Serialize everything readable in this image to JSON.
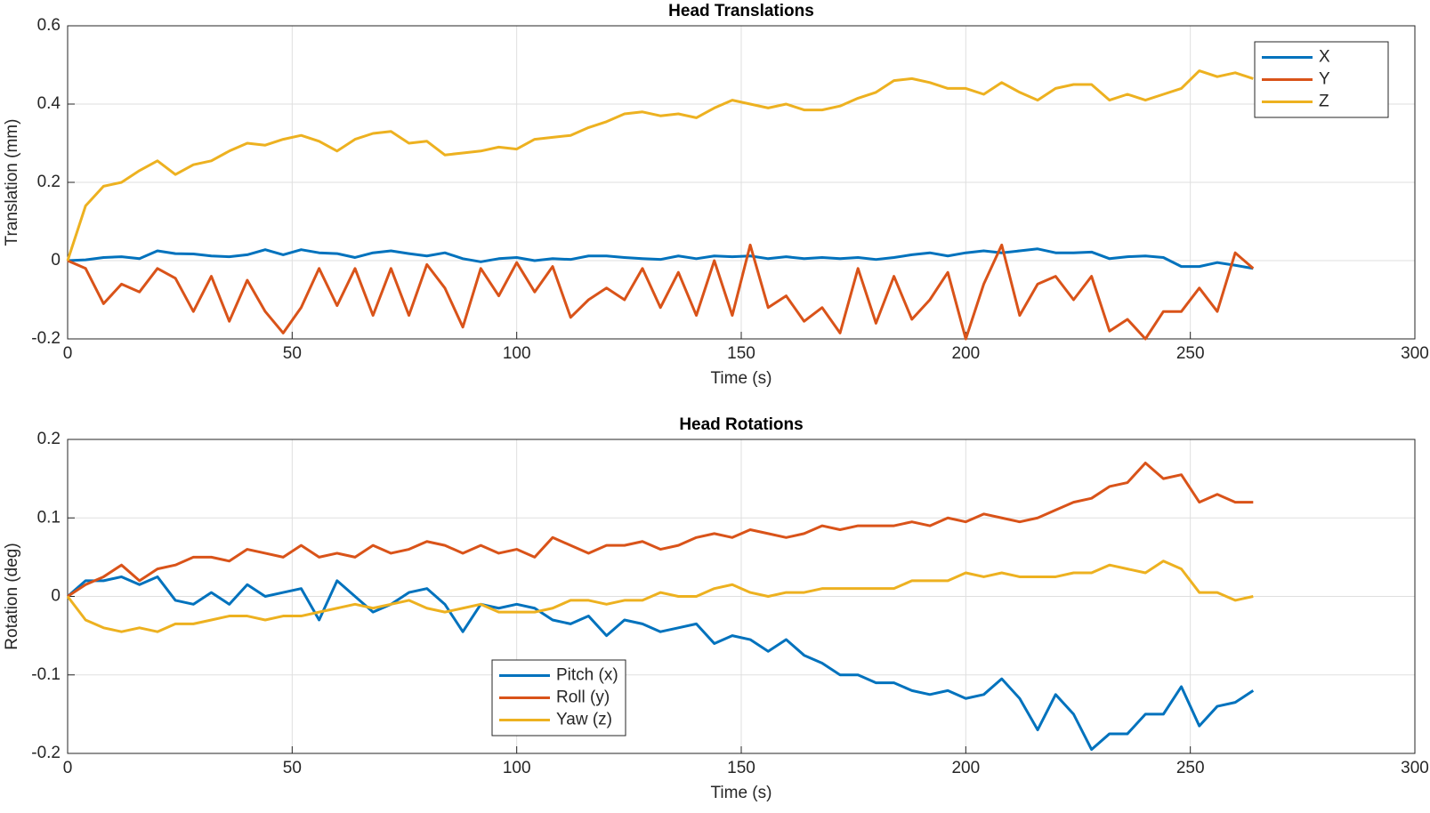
{
  "chart_data": [
    {
      "type": "line",
      "title": "Head Translations",
      "xlabel": "Time (s)",
      "ylabel": "Translation (mm)",
      "x": [
        0,
        4,
        8,
        12,
        16,
        20,
        24,
        28,
        32,
        36,
        40,
        44,
        48,
        52,
        56,
        60,
        64,
        68,
        72,
        76,
        80,
        84,
        88,
        92,
        96,
        100,
        104,
        108,
        112,
        116,
        120,
        124,
        128,
        132,
        136,
        140,
        144,
        148,
        152,
        156,
        160,
        164,
        168,
        172,
        176,
        180,
        184,
        188,
        192,
        196,
        200,
        204,
        208,
        212,
        216,
        220,
        224,
        228,
        232,
        236,
        240,
        244,
        248,
        252,
        256,
        260,
        264
      ],
      "xlim": [
        0,
        300
      ],
      "xticks": [
        0,
        50,
        100,
        150,
        200,
        250,
        300
      ],
      "ylim": [
        -0.2,
        0.6
      ],
      "yticks": [
        -0.2,
        0,
        0.2,
        0.4,
        0.6
      ],
      "grid": true,
      "legend": "upper right",
      "series": [
        {
          "name": "X",
          "color": "#0072bd",
          "values": [
            0,
            0.002,
            0.008,
            0.01,
            0.005,
            0.025,
            0.018,
            0.017,
            0.012,
            0.01,
            0.015,
            0.028,
            0.015,
            0.028,
            0.02,
            0.018,
            0.008,
            0.02,
            0.025,
            0.018,
            0.012,
            0.02,
            0.005,
            -0.003,
            0.005,
            0.008,
            0,
            0.005,
            0.003,
            0.012,
            0.012,
            0.008,
            0.005,
            0.003,
            0.012,
            0.005,
            0.012,
            0.01,
            0.012,
            0.005,
            0.01,
            0.005,
            0.008,
            0.005,
            0.008,
            0.003,
            0.008,
            0.015,
            0.02,
            0.012,
            0.02,
            0.025,
            0.02,
            0.025,
            0.03,
            0.02,
            0.02,
            0.022,
            0.005,
            0.01,
            0.012,
            0.008,
            -0.015,
            -0.015,
            -0.005,
            -0.012,
            -0.02
          ]
        },
        {
          "name": "Y",
          "color": "#d95319",
          "values": [
            0,
            -0.02,
            -0.11,
            -0.06,
            -0.08,
            -0.02,
            -0.045,
            -0.13,
            -0.04,
            -0.155,
            -0.05,
            -0.13,
            -0.185,
            -0.12,
            -0.02,
            -0.115,
            -0.02,
            -0.14,
            -0.02,
            -0.14,
            -0.01,
            -0.07,
            -0.17,
            -0.02,
            -0.09,
            -0.005,
            -0.08,
            -0.015,
            -0.145,
            -0.1,
            -0.07,
            -0.1,
            -0.02,
            -0.12,
            -0.03,
            -0.14,
            0,
            -0.14,
            0.04,
            -0.12,
            -0.09,
            -0.155,
            -0.12,
            -0.185,
            -0.02,
            -0.16,
            -0.04,
            -0.15,
            -0.1,
            -0.03,
            -0.2,
            -0.06,
            0.04,
            -0.14,
            -0.06,
            -0.04,
            -0.1,
            -0.04,
            -0.18,
            -0.15,
            -0.2,
            -0.13,
            -0.13,
            -0.07,
            -0.13,
            0.02,
            -0.02
          ]
        },
        {
          "name": "Z",
          "color": "#edb120",
          "values": [
            0,
            0.14,
            0.19,
            0.2,
            0.23,
            0.255,
            0.22,
            0.245,
            0.255,
            0.28,
            0.3,
            0.295,
            0.31,
            0.32,
            0.305,
            0.28,
            0.31,
            0.325,
            0.33,
            0.3,
            0.305,
            0.27,
            0.275,
            0.28,
            0.29,
            0.285,
            0.31,
            0.315,
            0.32,
            0.34,
            0.355,
            0.375,
            0.38,
            0.37,
            0.375,
            0.365,
            0.39,
            0.41,
            0.4,
            0.39,
            0.4,
            0.385,
            0.385,
            0.395,
            0.415,
            0.43,
            0.46,
            0.465,
            0.455,
            0.44,
            0.44,
            0.425,
            0.455,
            0.43,
            0.41,
            0.44,
            0.45,
            0.45,
            0.41,
            0.425,
            0.41,
            0.425,
            0.44,
            0.485,
            0.47,
            0.48,
            0.465
          ]
        }
      ]
    },
    {
      "type": "line",
      "title": "Head Rotations",
      "xlabel": "Time (s)",
      "ylabel": "Rotation (deg)",
      "x": [
        0,
        4,
        8,
        12,
        16,
        20,
        24,
        28,
        32,
        36,
        40,
        44,
        48,
        52,
        56,
        60,
        64,
        68,
        72,
        76,
        80,
        84,
        88,
        92,
        96,
        100,
        104,
        108,
        112,
        116,
        120,
        124,
        128,
        132,
        136,
        140,
        144,
        148,
        152,
        156,
        160,
        164,
        168,
        172,
        176,
        180,
        184,
        188,
        192,
        196,
        200,
        204,
        208,
        212,
        216,
        220,
        224,
        228,
        232,
        236,
        240,
        244,
        248,
        252,
        256,
        260,
        264
      ],
      "xlim": [
        0,
        300
      ],
      "xticks": [
        0,
        50,
        100,
        150,
        200,
        250,
        300
      ],
      "ylim": [
        -0.2,
        0.2
      ],
      "yticks": [
        -0.2,
        -0.1,
        0,
        0.1,
        0.2
      ],
      "grid": true,
      "legend": "lower center",
      "series": [
        {
          "name": "Pitch (x)",
          "color": "#0072bd",
          "values": [
            0,
            0.02,
            0.02,
            0.025,
            0.015,
            0.025,
            -0.005,
            -0.01,
            0.005,
            -0.01,
            0.015,
            0,
            0.005,
            0.01,
            -0.03,
            0.02,
            0,
            -0.02,
            -0.01,
            0.005,
            0.01,
            -0.01,
            -0.045,
            -0.01,
            -0.015,
            -0.01,
            -0.015,
            -0.03,
            -0.035,
            -0.025,
            -0.05,
            -0.03,
            -0.035,
            -0.045,
            -0.04,
            -0.035,
            -0.06,
            -0.05,
            -0.055,
            -0.07,
            -0.055,
            -0.075,
            -0.085,
            -0.1,
            -0.1,
            -0.11,
            -0.11,
            -0.12,
            -0.125,
            -0.12,
            -0.13,
            -0.125,
            -0.105,
            -0.13,
            -0.17,
            -0.125,
            -0.15,
            -0.195,
            -0.175,
            -0.175,
            -0.15,
            -0.15,
            -0.115,
            -0.165,
            -0.14,
            -0.135,
            -0.12
          ]
        },
        {
          "name": "Roll (y)",
          "color": "#d95319",
          "values": [
            0,
            0.015,
            0.025,
            0.04,
            0.02,
            0.035,
            0.04,
            0.05,
            0.05,
            0.045,
            0.06,
            0.055,
            0.05,
            0.065,
            0.05,
            0.055,
            0.05,
            0.065,
            0.055,
            0.06,
            0.07,
            0.065,
            0.055,
            0.065,
            0.055,
            0.06,
            0.05,
            0.075,
            0.065,
            0.055,
            0.065,
            0.065,
            0.07,
            0.06,
            0.065,
            0.075,
            0.08,
            0.075,
            0.085,
            0.08,
            0.075,
            0.08,
            0.09,
            0.085,
            0.09,
            0.09,
            0.09,
            0.095,
            0.09,
            0.1,
            0.095,
            0.105,
            0.1,
            0.095,
            0.1,
            0.11,
            0.12,
            0.125,
            0.14,
            0.145,
            0.17,
            0.15,
            0.155,
            0.12,
            0.13,
            0.12,
            0.12
          ]
        },
        {
          "name": "Yaw (z)",
          "color": "#edb120",
          "values": [
            0,
            -0.03,
            -0.04,
            -0.045,
            -0.04,
            -0.045,
            -0.035,
            -0.035,
            -0.03,
            -0.025,
            -0.025,
            -0.03,
            -0.025,
            -0.025,
            -0.02,
            -0.015,
            -0.01,
            -0.015,
            -0.01,
            -0.005,
            -0.015,
            -0.02,
            -0.015,
            -0.01,
            -0.02,
            -0.02,
            -0.02,
            -0.015,
            -0.005,
            -0.005,
            -0.01,
            -0.005,
            -0.005,
            0.005,
            0,
            0,
            0.01,
            0.015,
            0.005,
            0,
            0.005,
            0.005,
            0.01,
            0.01,
            0.01,
            0.01,
            0.01,
            0.02,
            0.02,
            0.02,
            0.03,
            0.025,
            0.03,
            0.025,
            0.025,
            0.025,
            0.03,
            0.03,
            0.04,
            0.035,
            0.03,
            0.045,
            0.035,
            0.005,
            0.005,
            -0.005,
            0
          ]
        }
      ]
    }
  ]
}
